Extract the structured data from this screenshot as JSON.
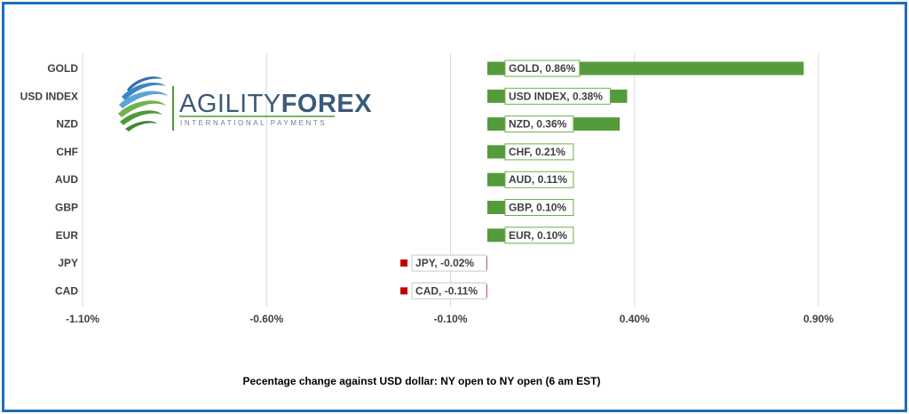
{
  "colors": {
    "positive": "#559b3c",
    "negative": "#c00000",
    "grid": "#d9d9d9",
    "frame": "#1f6fb8",
    "label_border_pos": "#70ad47",
    "label_border_neg": "#c9c9c9"
  },
  "logo": {
    "brand_part1": "AGILITY",
    "brand_part2": "FOREX",
    "tagline": "INTERNATIONAL PAYMENTS",
    "icon": "globe-swoosh-icon"
  },
  "chart_data": {
    "type": "bar",
    "orientation": "horizontal",
    "categories": [
      "GOLD",
      "USD INDEX",
      "NZD",
      "CHF",
      "AUD",
      "GBP",
      "EUR",
      "JPY",
      "CAD"
    ],
    "values": [
      0.86,
      0.38,
      0.36,
      0.21,
      0.11,
      0.1,
      0.1,
      -0.02,
      -0.11
    ],
    "data_labels": [
      "GOLD, 0.86%",
      "USD INDEX, 0.38%",
      "NZD, 0.36%",
      "CHF, 0.21%",
      "AUD, 0.11%",
      "GBP, 0.10%",
      "EUR, 0.10%",
      "JPY, -0.02%",
      "CAD, -0.11%"
    ],
    "xlim": [
      -1.1,
      0.9
    ],
    "x_ticks": [
      -1.1,
      -0.6,
      -0.1,
      0.4,
      0.9
    ],
    "x_tick_labels": [
      "-1.10%",
      "-0.60%",
      "-0.10%",
      "0.40%",
      "0.90%"
    ],
    "grid": "vertical",
    "legend": "none",
    "title": "",
    "xlabel": "Pecentage change against USD dollar:  NY open to NY open  (6 am EST)"
  }
}
